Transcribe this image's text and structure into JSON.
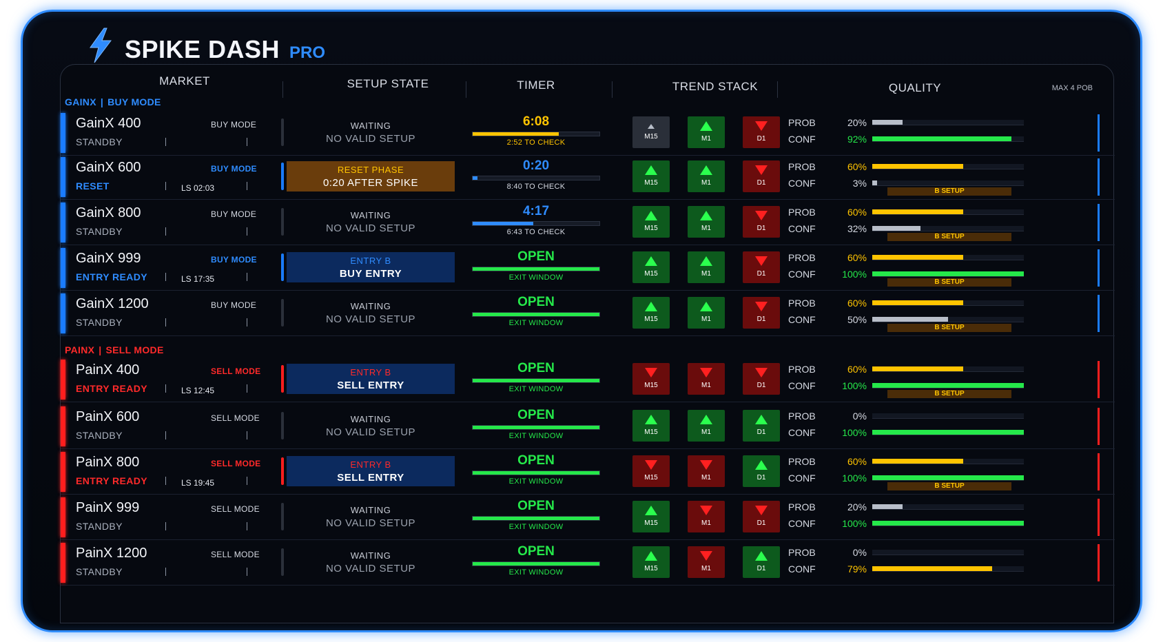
{
  "app": {
    "title": "SPIKE DASH",
    "edition": "PRO"
  },
  "colors": {
    "buy": "#2f8cff",
    "sell": "#ff2a2a",
    "good": "#25e84a",
    "warn": "#ffc400",
    "neutral": "#b8bec9"
  },
  "headers": {
    "market": "MARKET",
    "setup_state": "SETUP STATE",
    "timer": "TIMER",
    "trend_stack": "TREND STACK",
    "quality": "QUALITY",
    "quality_note": "MAX 4 POB"
  },
  "groups": {
    "gainx": {
      "name": "GAINX",
      "sep": "|",
      "mode": "BUY MODE"
    },
    "painx": {
      "name": "PAINX",
      "sep": "|",
      "mode": "SELL MODE"
    }
  },
  "rows": [
    {
      "side": "buy",
      "name": "GainX 400",
      "status": "STANDBY",
      "mode": "BUY MODE",
      "mode_active": false,
      "ls": "",
      "state": {
        "type": "waiting",
        "line1": "WAITING",
        "line2": "NO VALID SETUP"
      },
      "timer": {
        "value": "6:08",
        "value_color": "warn",
        "bar_pct": 0.68,
        "bar_color": "warn",
        "sub": "2:52 TO CHECK",
        "sub_color": "warn"
      },
      "trend": [
        {
          "tf": "M15",
          "dir": "neutral"
        },
        {
          "tf": "M1",
          "dir": "up"
        },
        {
          "tf": "D1",
          "dir": "down"
        }
      ],
      "quality": {
        "prob_label": "PROB",
        "prob": "20%",
        "prob_color": "neutral",
        "prob_pct": 0.2,
        "conf_label": "CONF",
        "conf": "92%",
        "conf_color": "good",
        "conf_pct": 0.92,
        "badge": ""
      }
    },
    {
      "side": "buy",
      "name": "GainX 600",
      "status": "RESET",
      "mode": "BUY MODE",
      "mode_active": true,
      "ls": "LS 02:03",
      "state": {
        "type": "reset",
        "line1": "RESET PHASE",
        "line2": "0:20 AFTER SPIKE"
      },
      "timer": {
        "value": "0:20",
        "value_color": "buy",
        "bar_pct": 0.04,
        "bar_color": "buy",
        "sub": "8:40 TO CHECK",
        "sub_color": "plain"
      },
      "trend": [
        {
          "tf": "M15",
          "dir": "up"
        },
        {
          "tf": "M1",
          "dir": "up"
        },
        {
          "tf": "D1",
          "dir": "down"
        }
      ],
      "quality": {
        "prob_label": "PROB",
        "prob": "60%",
        "prob_color": "warn",
        "prob_pct": 0.6,
        "conf_label": "CONF",
        "conf": "3%",
        "conf_color": "neutral",
        "conf_pct": 0.03,
        "badge": "B SETUP"
      }
    },
    {
      "side": "buy",
      "name": "GainX 800",
      "status": "STANDBY",
      "mode": "BUY MODE",
      "mode_active": false,
      "ls": "",
      "state": {
        "type": "waiting",
        "line1": "WAITING",
        "line2": "NO VALID SETUP"
      },
      "timer": {
        "value": "4:17",
        "value_color": "buy",
        "bar_pct": 0.48,
        "bar_color": "buy",
        "sub": "6:43 TO CHECK",
        "sub_color": "plain"
      },
      "trend": [
        {
          "tf": "M15",
          "dir": "up"
        },
        {
          "tf": "M1",
          "dir": "up"
        },
        {
          "tf": "D1",
          "dir": "down"
        }
      ],
      "quality": {
        "prob_label": "PROB",
        "prob": "60%",
        "prob_color": "warn",
        "prob_pct": 0.6,
        "conf_label": "CONF",
        "conf": "32%",
        "conf_color": "neutral",
        "conf_pct": 0.32,
        "badge": "B SETUP"
      }
    },
    {
      "side": "buy",
      "name": "GainX 999",
      "status": "ENTRY READY",
      "mode": "BUY MODE",
      "mode_active": true,
      "ls": "LS 17:35",
      "state": {
        "type": "entry",
        "line1": "ENTRY B",
        "line2": "BUY ENTRY"
      },
      "timer": {
        "value": "OPEN",
        "value_color": "good",
        "bar_pct": 1.0,
        "bar_color": "good",
        "sub": "EXIT WINDOW",
        "sub_color": "good"
      },
      "trend": [
        {
          "tf": "M15",
          "dir": "up"
        },
        {
          "tf": "M1",
          "dir": "up"
        },
        {
          "tf": "D1",
          "dir": "down"
        }
      ],
      "quality": {
        "prob_label": "PROB",
        "prob": "60%",
        "prob_color": "warn",
        "prob_pct": 0.6,
        "conf_label": "CONF",
        "conf": "100%",
        "conf_color": "good",
        "conf_pct": 1.0,
        "badge": "B SETUP"
      }
    },
    {
      "side": "buy",
      "name": "GainX 1200",
      "status": "STANDBY",
      "mode": "BUY MODE",
      "mode_active": false,
      "ls": "",
      "state": {
        "type": "waiting",
        "line1": "WAITING",
        "line2": "NO VALID SETUP"
      },
      "timer": {
        "value": "OPEN",
        "value_color": "good",
        "bar_pct": 1.0,
        "bar_color": "good",
        "sub": "EXIT WINDOW",
        "sub_color": "good"
      },
      "trend": [
        {
          "tf": "M15",
          "dir": "up"
        },
        {
          "tf": "M1",
          "dir": "up"
        },
        {
          "tf": "D1",
          "dir": "down"
        }
      ],
      "quality": {
        "prob_label": "PROB",
        "prob": "60%",
        "prob_color": "warn",
        "prob_pct": 0.6,
        "conf_label": "CONF",
        "conf": "50%",
        "conf_color": "neutral",
        "conf_pct": 0.5,
        "badge": "B SETUP"
      }
    },
    {
      "side": "sell",
      "name": "PainX 400",
      "status": "ENTRY READY",
      "mode": "SELL MODE",
      "mode_active": true,
      "ls": "LS 12:45",
      "state": {
        "type": "entry",
        "line1": "ENTRY B",
        "line2": "SELL ENTRY"
      },
      "timer": {
        "value": "OPEN",
        "value_color": "good",
        "bar_pct": 1.0,
        "bar_color": "good",
        "sub": "EXIT WINDOW",
        "sub_color": "good"
      },
      "trend": [
        {
          "tf": "M15",
          "dir": "down"
        },
        {
          "tf": "M1",
          "dir": "down"
        },
        {
          "tf": "D1",
          "dir": "down"
        }
      ],
      "quality": {
        "prob_label": "PROB",
        "prob": "60%",
        "prob_color": "warn",
        "prob_pct": 0.6,
        "conf_label": "CONF",
        "conf": "100%",
        "conf_color": "good",
        "conf_pct": 1.0,
        "badge": "B SETUP"
      }
    },
    {
      "side": "sell",
      "name": "PainX 600",
      "status": "STANDBY",
      "mode": "SELL MODE",
      "mode_active": false,
      "ls": "",
      "state": {
        "type": "waiting",
        "line1": "WAITING",
        "line2": "NO VALID SETUP"
      },
      "timer": {
        "value": "OPEN",
        "value_color": "good",
        "bar_pct": 1.0,
        "bar_color": "good",
        "sub": "EXIT WINDOW",
        "sub_color": "good"
      },
      "trend": [
        {
          "tf": "M15",
          "dir": "up"
        },
        {
          "tf": "M1",
          "dir": "up"
        },
        {
          "tf": "D1",
          "dir": "up"
        }
      ],
      "quality": {
        "prob_label": "PROB",
        "prob": "0%",
        "prob_color": "neutral",
        "prob_pct": 0.0,
        "conf_label": "CONF",
        "conf": "100%",
        "conf_color": "good",
        "conf_pct": 1.0,
        "badge": ""
      }
    },
    {
      "side": "sell",
      "name": "PainX 800",
      "status": "ENTRY READY",
      "mode": "SELL MODE",
      "mode_active": true,
      "ls": "LS 19:45",
      "state": {
        "type": "entry",
        "line1": "ENTRY B",
        "line2": "SELL ENTRY"
      },
      "timer": {
        "value": "OPEN",
        "value_color": "good",
        "bar_pct": 1.0,
        "bar_color": "good",
        "sub": "EXIT WINDOW",
        "sub_color": "good"
      },
      "trend": [
        {
          "tf": "M15",
          "dir": "down"
        },
        {
          "tf": "M1",
          "dir": "down"
        },
        {
          "tf": "D1",
          "dir": "up"
        }
      ],
      "quality": {
        "prob_label": "PROB",
        "prob": "60%",
        "prob_color": "warn",
        "prob_pct": 0.6,
        "conf_label": "CONF",
        "conf": "100%",
        "conf_color": "good",
        "conf_pct": 1.0,
        "badge": "B SETUP"
      }
    },
    {
      "side": "sell",
      "name": "PainX 999",
      "status": "STANDBY",
      "mode": "SELL MODE",
      "mode_active": false,
      "ls": "",
      "state": {
        "type": "waiting",
        "line1": "WAITING",
        "line2": "NO VALID SETUP"
      },
      "timer": {
        "value": "OPEN",
        "value_color": "good",
        "bar_pct": 1.0,
        "bar_color": "good",
        "sub": "EXIT WINDOW",
        "sub_color": "good"
      },
      "trend": [
        {
          "tf": "M15",
          "dir": "up"
        },
        {
          "tf": "M1",
          "dir": "down"
        },
        {
          "tf": "D1",
          "dir": "down"
        }
      ],
      "quality": {
        "prob_label": "PROB",
        "prob": "20%",
        "prob_color": "neutral",
        "prob_pct": 0.2,
        "conf_label": "CONF",
        "conf": "100%",
        "conf_color": "good",
        "conf_pct": 1.0,
        "badge": ""
      }
    },
    {
      "side": "sell",
      "name": "PainX 1200",
      "status": "STANDBY",
      "mode": "SELL MODE",
      "mode_active": false,
      "ls": "",
      "state": {
        "type": "waiting",
        "line1": "WAITING",
        "line2": "NO VALID SETUP"
      },
      "timer": {
        "value": "OPEN",
        "value_color": "good",
        "bar_pct": 1.0,
        "bar_color": "good",
        "sub": "EXIT WINDOW",
        "sub_color": "good"
      },
      "trend": [
        {
          "tf": "M15",
          "dir": "up"
        },
        {
          "tf": "M1",
          "dir": "down"
        },
        {
          "tf": "D1",
          "dir": "up"
        }
      ],
      "quality": {
        "prob_label": "PROB",
        "prob": "0%",
        "prob_color": "neutral",
        "prob_pct": 0.0,
        "conf_label": "CONF",
        "conf": "79%",
        "conf_color": "warn",
        "conf_pct": 0.79,
        "badge": ""
      }
    }
  ]
}
